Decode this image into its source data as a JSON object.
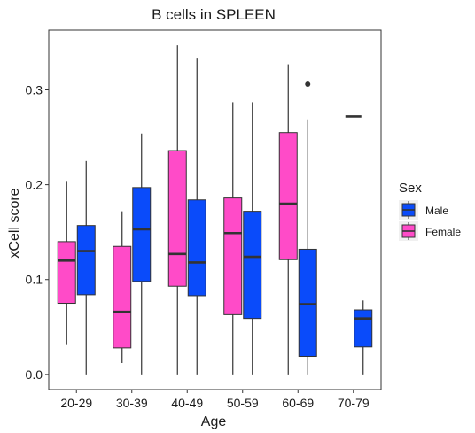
{
  "chart_data": {
    "type": "boxplot",
    "title": "B cells in SPLEEN",
    "xlabel": "Age",
    "ylabel": "xCell score",
    "categories": [
      "20-29",
      "30-39",
      "40-49",
      "50-59",
      "60-69",
      "70-79"
    ],
    "yticks": [
      "0.0",
      "0.1",
      "0.2",
      "0.3"
    ],
    "ytick_values": [
      0.0,
      0.1,
      0.2,
      0.3
    ],
    "ylim": [
      -0.016,
      0.363
    ],
    "grid": false,
    "legend": {
      "title": "Sex",
      "position": "right",
      "entries": [
        {
          "name": "Male",
          "color": "#0a4bfa"
        },
        {
          "name": "Female",
          "color": "#ff4bc8"
        }
      ]
    },
    "series": [
      {
        "name": "Female",
        "color": "#ff4bc8",
        "boxes": [
          {
            "category": "20-29",
            "min": 0.031,
            "q1": 0.075,
            "median": 0.12,
            "q3": 0.14,
            "max": 0.204,
            "outliers": []
          },
          {
            "category": "30-39",
            "min": 0.012,
            "q1": 0.028,
            "median": 0.066,
            "q3": 0.135,
            "max": 0.172,
            "outliers": []
          },
          {
            "category": "40-49",
            "min": 0.0,
            "q1": 0.093,
            "median": 0.127,
            "q3": 0.236,
            "max": 0.347,
            "outliers": []
          },
          {
            "category": "50-59",
            "min": 0.0,
            "q1": 0.063,
            "median": 0.149,
            "q3": 0.186,
            "max": 0.287,
            "outliers": []
          },
          {
            "category": "60-69",
            "min": 0.0,
            "q1": 0.121,
            "median": 0.18,
            "q3": 0.255,
            "max": 0.327,
            "outliers": []
          }
        ]
      },
      {
        "name": "Male",
        "color": "#0a4bfa",
        "boxes": [
          {
            "category": "20-29",
            "min": 0.0,
            "q1": 0.084,
            "median": 0.13,
            "q3": 0.157,
            "max": 0.225,
            "outliers": []
          },
          {
            "category": "30-39",
            "min": 0.0,
            "q1": 0.098,
            "median": 0.153,
            "q3": 0.197,
            "max": 0.254,
            "outliers": []
          },
          {
            "category": "40-49",
            "min": 0.0,
            "q1": 0.083,
            "median": 0.118,
            "q3": 0.184,
            "max": 0.333,
            "outliers": []
          },
          {
            "category": "50-59",
            "min": 0.0,
            "q1": 0.059,
            "median": 0.124,
            "q3": 0.172,
            "max": 0.287,
            "outliers": []
          },
          {
            "category": "60-69",
            "min": 0.0,
            "q1": 0.019,
            "median": 0.074,
            "q3": 0.132,
            "max": 0.269,
            "outliers": [
              0.306
            ]
          },
          {
            "category": "70-79",
            "min": 0.0,
            "q1": 0.029,
            "median": 0.059,
            "q3": 0.068,
            "max": 0.078,
            "outliers": []
          }
        ]
      }
    ],
    "singletons": [
      {
        "series": "Male",
        "category": "70-79",
        "value": 0.272,
        "note_position": "centered"
      }
    ]
  }
}
